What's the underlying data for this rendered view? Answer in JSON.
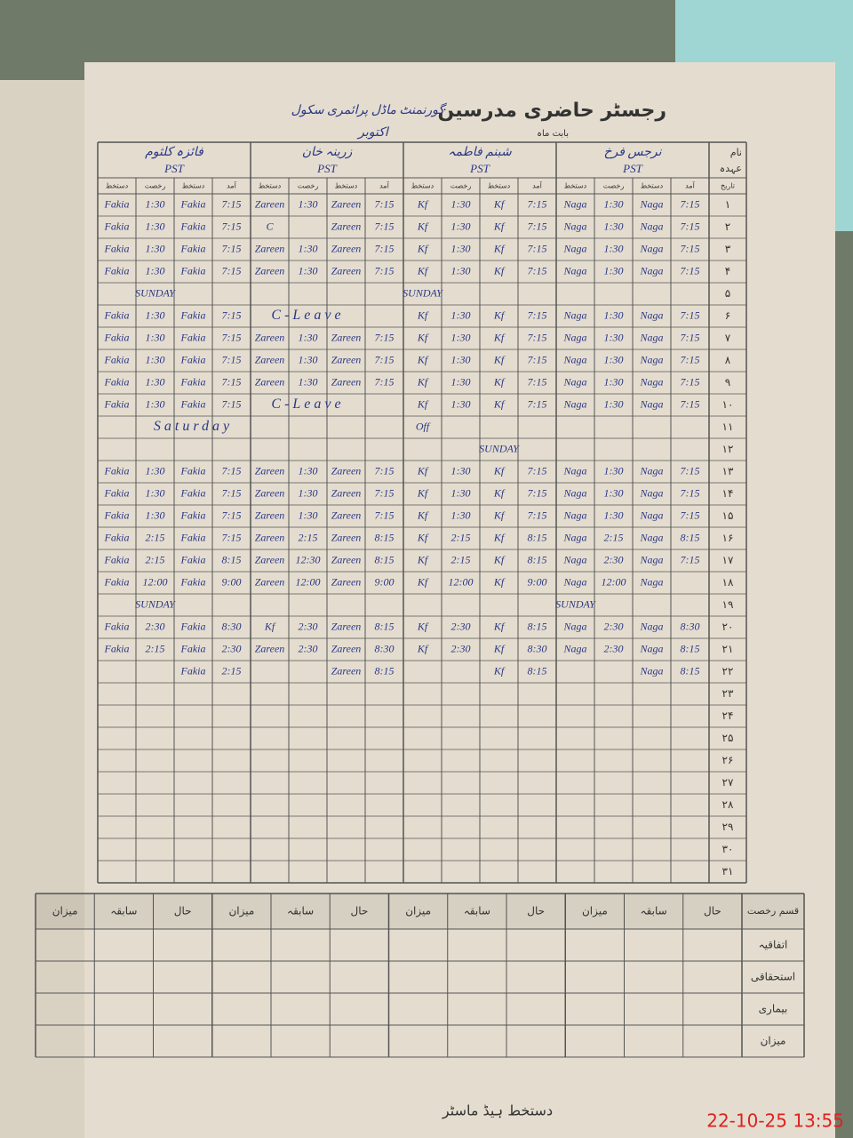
{
  "header": {
    "title": "رجسٹر حاضری مدرسین",
    "school": "گورنمنٹ ماڈل پرائمری سکول",
    "month_label": "بابت ماہ",
    "month": "اکتوبر",
    "name_label": "نام",
    "designation_label": "عہدہ"
  },
  "teachers": [
    {
      "name": "فائزہ کلثوم",
      "designation": "PST"
    },
    {
      "name": "زرینہ خان",
      "designation": "PST"
    },
    {
      "name": "شبنم فاطمہ",
      "designation": "PST"
    },
    {
      "name": "نرجس فرخ",
      "designation": "PST"
    }
  ],
  "columns": {
    "date": "تاریخ",
    "sub": [
      "دستخط",
      "رخصت",
      "دستخط",
      "آمد"
    ]
  },
  "rows": [
    {
      "day": "۱",
      "cells": [
        "Fakia",
        "1:30",
        "Fakia",
        "7:15",
        "Zareen",
        "1:30",
        "Zareen",
        "7:15",
        "Kf",
        "1:30",
        "Kf",
        "7:15",
        "Naga",
        "1:30",
        "Naga",
        "7:15"
      ]
    },
    {
      "day": "۲",
      "cells": [
        "Fakia",
        "1:30",
        "Fakia",
        "7:15",
        "C",
        null,
        "Zareen",
        "7:15",
        "Kf",
        "1:30",
        "Kf",
        "7:15",
        "Naga",
        "1:30",
        "Naga",
        "7:15"
      ]
    },
    {
      "day": "۳",
      "cells": [
        "Fakia",
        "1:30",
        "Fakia",
        "7:15",
        "Zareen",
        "1:30",
        "Zareen",
        "7:15",
        "Kf",
        "1:30",
        "Kf",
        "7:15",
        "Naga",
        "1:30",
        "Naga",
        "7:15"
      ]
    },
    {
      "day": "۴",
      "cells": [
        "Fakia",
        "1:30",
        "Fakia",
        "7:15",
        "Zareen",
        "1:30",
        "Zareen",
        "7:15",
        "Kf",
        "1:30",
        "Kf",
        "7:15",
        "Naga",
        "1:30",
        "Naga",
        "7:15"
      ]
    },
    {
      "day": "۵",
      "cells": [
        null,
        "SUNDAY",
        null,
        null,
        null,
        null,
        null,
        null,
        "SUNDAY",
        null,
        null,
        null,
        null,
        null,
        null,
        null
      ]
    },
    {
      "day": "۶",
      "cells": [
        "Fakia",
        "1:30",
        "Fakia",
        "7:15",
        null,
        "C-Leave",
        null,
        null,
        "Kf",
        "1:30",
        "Kf",
        "7:15",
        "Naga",
        "1:30",
        "Naga",
        "7:15"
      ]
    },
    {
      "day": "۷",
      "cells": [
        "Fakia",
        "1:30",
        "Fakia",
        "7:15",
        "Zareen",
        "1:30",
        "Zareen",
        "7:15",
        "Kf",
        "1:30",
        "Kf",
        "7:15",
        "Naga",
        "1:30",
        "Naga",
        "7:15"
      ]
    },
    {
      "day": "۸",
      "cells": [
        "Fakia",
        "1:30",
        "Fakia",
        "7:15",
        "Zareen",
        "1:30",
        "Zareen",
        "7:15",
        "Kf",
        "1:30",
        "Kf",
        "7:15",
        "Naga",
        "1:30",
        "Naga",
        "7:15"
      ]
    },
    {
      "day": "۹",
      "cells": [
        "Fakia",
        "1:30",
        "Fakia",
        "7:15",
        "Zareen",
        "1:30",
        "Zareen",
        "7:15",
        "Kf",
        "1:30",
        "Kf",
        "7:15",
        "Naga",
        "1:30",
        "Naga",
        "7:15"
      ]
    },
    {
      "day": "۱۰",
      "cells": [
        "Fakia",
        "1:30",
        "Fakia",
        "7:15",
        null,
        "C-Leave",
        null,
        null,
        "Kf",
        "1:30",
        "Kf",
        "7:15",
        "Naga",
        "1:30",
        "Naga",
        "7:15"
      ]
    },
    {
      "day": "۱۱",
      "cells": [
        null,
        null,
        "Saturday",
        null,
        null,
        null,
        null,
        null,
        "Off",
        null,
        null,
        null,
        null,
        null,
        null,
        null
      ]
    },
    {
      "day": "۱۲",
      "cells": [
        null,
        null,
        null,
        null,
        null,
        null,
        null,
        null,
        null,
        null,
        "SUNDAY",
        null,
        null,
        null,
        null,
        null
      ]
    },
    {
      "day": "۱۳",
      "cells": [
        "Fakia",
        "1:30",
        "Fakia",
        "7:15",
        "Zareen",
        "1:30",
        "Zareen",
        "7:15",
        "Kf",
        "1:30",
        "Kf",
        "7:15",
        "Naga",
        "1:30",
        "Naga",
        "7:15"
      ]
    },
    {
      "day": "۱۴",
      "cells": [
        "Fakia",
        "1:30",
        "Fakia",
        "7:15",
        "Zareen",
        "1:30",
        "Zareen",
        "7:15",
        "Kf",
        "1:30",
        "Kf",
        "7:15",
        "Naga",
        "1:30",
        "Naga",
        "7:15"
      ]
    },
    {
      "day": "۱۵",
      "cells": [
        "Fakia",
        "1:30",
        "Fakia",
        "7:15",
        "Zareen",
        "1:30",
        "Zareen",
        "7:15",
        "Kf",
        "1:30",
        "Kf",
        "7:15",
        "Naga",
        "1:30",
        "Naga",
        "7:15"
      ]
    },
    {
      "day": "۱۶",
      "cells": [
        "Fakia",
        "2:15",
        "Fakia",
        "7:15",
        "Zareen",
        "2:15",
        "Zareen",
        "8:15",
        "Kf",
        "2:15",
        "Kf",
        "8:15",
        "Naga",
        "2:15",
        "Naga",
        "8:15"
      ]
    },
    {
      "day": "۱۷",
      "cells": [
        "Fakia",
        "2:15",
        "Fakia",
        "8:15",
        "Zareen",
        "12:30",
        "Zareen",
        "8:15",
        "Kf",
        "2:15",
        "Kf",
        "8:15",
        "Naga",
        "2:30",
        "Naga",
        "7:15"
      ]
    },
    {
      "day": "۱۸",
      "cells": [
        "Fakia",
        "12:00",
        "Fakia",
        "9:00",
        "Zareen",
        "12:00",
        "Zareen",
        "9:00",
        "Kf",
        "12:00",
        "Kf",
        "9:00",
        "Naga",
        "12:00",
        "Naga",
        null
      ]
    },
    {
      "day": "۱۹",
      "cells": [
        null,
        "SUNDAY",
        null,
        null,
        null,
        null,
        null,
        null,
        null,
        null,
        null,
        null,
        "SUNDAY",
        null,
        null,
        null
      ]
    },
    {
      "day": "۲۰",
      "cells": [
        "Fakia",
        "2:30",
        "Fakia",
        "8:30",
        "Kf",
        "2:30",
        "Zareen",
        "8:15",
        "Kf",
        "2:30",
        "Kf",
        "8:15",
        "Naga",
        "2:30",
        "Naga",
        "8:30"
      ]
    },
    {
      "day": "۲۱",
      "cells": [
        "Fakia",
        "2:15",
        "Fakia",
        "2:30",
        "Zareen",
        "2:30",
        "Zareen",
        "8:30",
        "Kf",
        "2:30",
        "Kf",
        "8:30",
        "Naga",
        "2:30",
        "Naga",
        "8:15"
      ]
    },
    {
      "day": "۲۲",
      "cells": [
        null,
        null,
        "Fakia",
        "2:15",
        null,
        null,
        "Zareen",
        "8:15",
        null,
        null,
        "Kf",
        "8:15",
        null,
        null,
        "Naga",
        "8:15"
      ]
    },
    {
      "day": "۲۳"
    },
    {
      "day": "۲۴"
    },
    {
      "day": "۲۵"
    },
    {
      "day": "۲۶"
    },
    {
      "day": "۲۷"
    },
    {
      "day": "۲۸"
    },
    {
      "day": "۲۹"
    },
    {
      "day": "۳۰"
    },
    {
      "day": "۳۱"
    }
  ],
  "summary": {
    "type_label": "قسم رخصت",
    "sub": [
      "میزان",
      "سابقہ",
      "حال"
    ],
    "rows": [
      "اتفاقیہ",
      "استحقاقی",
      "بیماری",
      "میزان"
    ]
  },
  "footer": "دستخط ہیڈ ماسٹر",
  "timestamp": "22-10-25  13:55"
}
